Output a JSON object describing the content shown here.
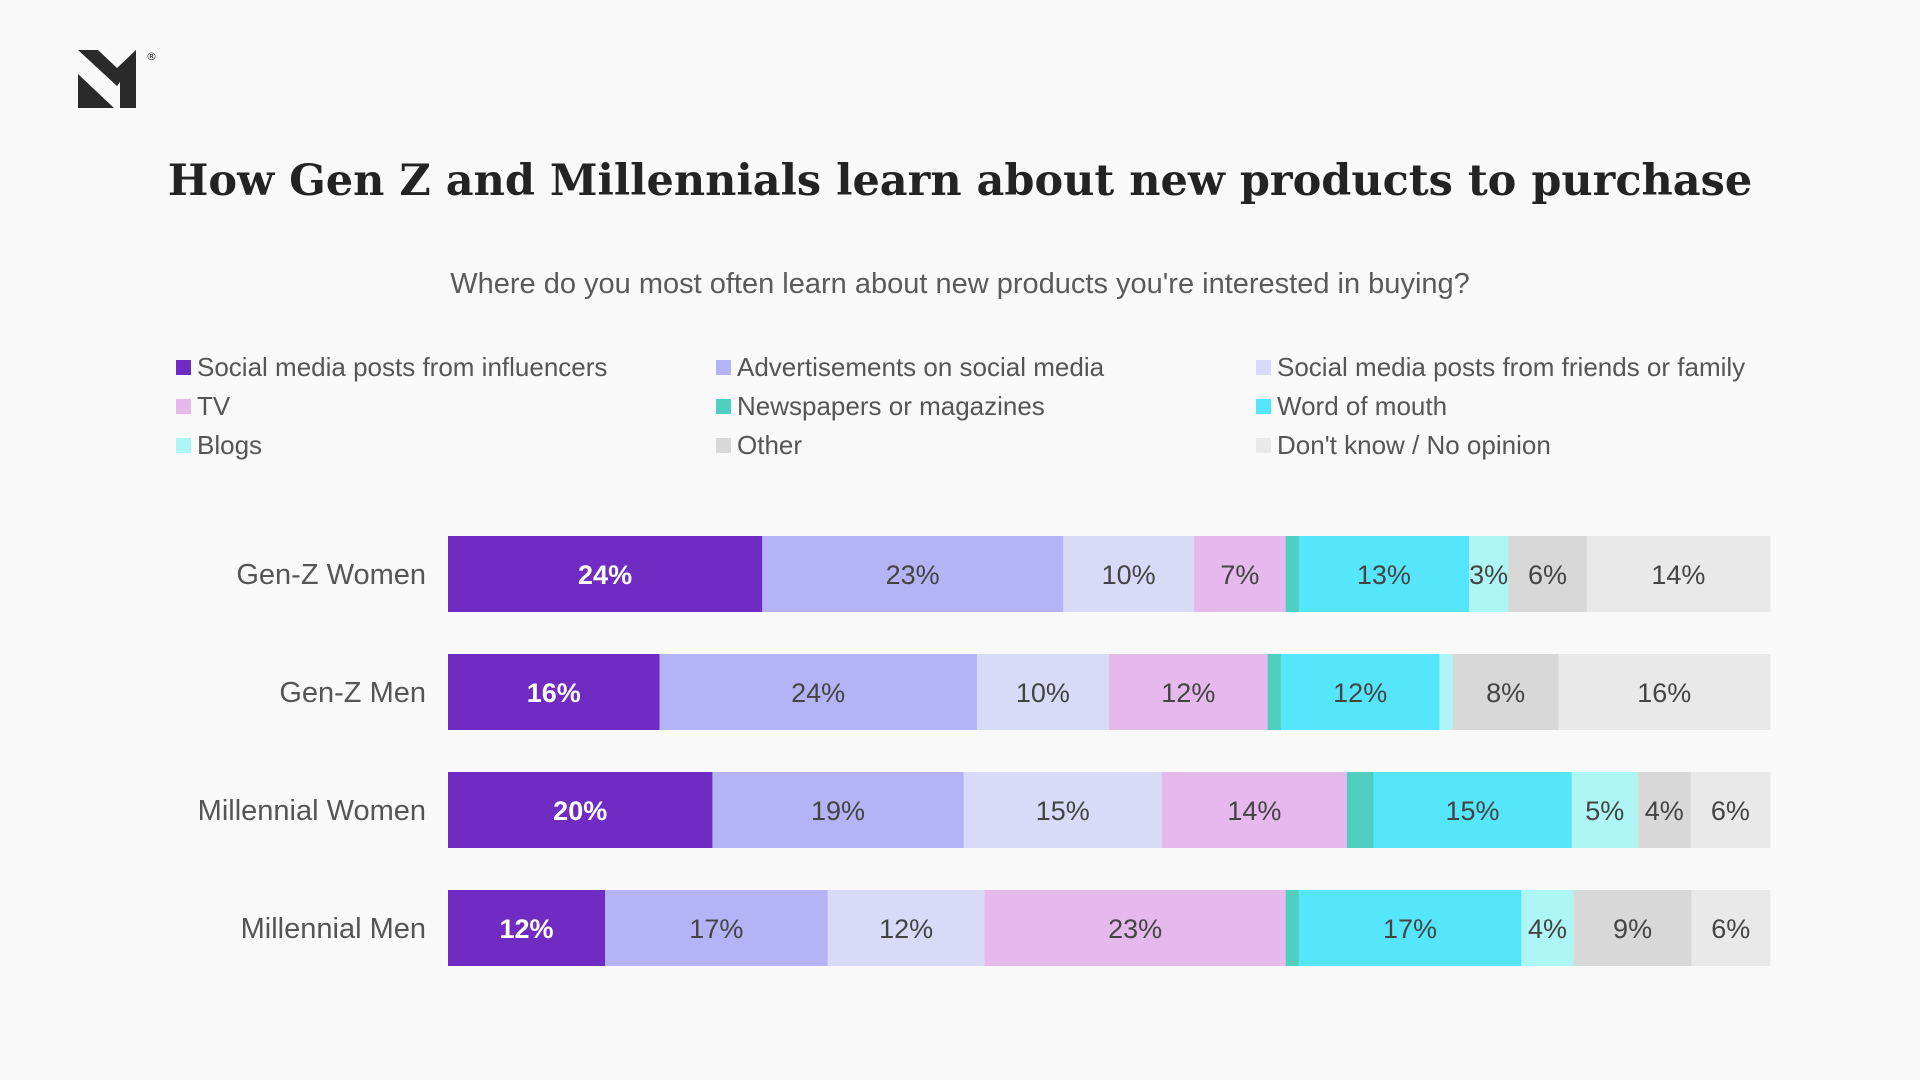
{
  "title": "How Gen Z and Millennials learn about new products to purchase",
  "subtitle": "Where do you most often learn about new products you're interested in buying?",
  "colors": {
    "background": "#f9f9f9",
    "influencers": "#702cc2",
    "ads_social": "#b3b3f5",
    "friends_family": "#d9daf8",
    "tv": "#e6b9ed",
    "newspapers": "#4fcfc0",
    "word_of_mouth": "#55e6fb",
    "blogs": "#aef6f5",
    "other": "#d8d8d8",
    "dont_know": "#e9e9e9"
  },
  "chart_data": {
    "type": "bar",
    "orientation": "horizontal",
    "stacked": true,
    "normalized": true,
    "title": "How Gen Z and Millennials learn about new products to purchase",
    "subtitle": "Where do you most often learn about new products you're interested in buying?",
    "categories": [
      "Gen-Z Women",
      "Gen-Z Men",
      "Millennial Women",
      "Millennial Men"
    ],
    "legend_position": "top",
    "grid": false,
    "series": [
      {
        "name": "Social media posts from influencers",
        "color_key": "influencers",
        "values": [
          24,
          16,
          20,
          12
        ],
        "labels": [
          "24%",
          "16%",
          "20%",
          "12%"
        ]
      },
      {
        "name": "Advertisements on social media",
        "color_key": "ads_social",
        "values": [
          23,
          24,
          19,
          17
        ],
        "labels": [
          "23%",
          "24%",
          "19%",
          "17%"
        ]
      },
      {
        "name": "Social media posts from friends or family",
        "color_key": "friends_family",
        "values": [
          10,
          10,
          15,
          12
        ],
        "labels": [
          "10%",
          "10%",
          "15%",
          "12%"
        ]
      },
      {
        "name": "TV",
        "color_key": "tv",
        "values": [
          7,
          12,
          14,
          23
        ],
        "labels": [
          "7%",
          "12%",
          "14%",
          "23%"
        ]
      },
      {
        "name": "Newspapers or magazines",
        "color_key": "newspapers",
        "values": [
          1,
          1,
          2,
          1
        ],
        "labels": [
          "",
          "",
          "",
          ""
        ]
      },
      {
        "name": "Word of mouth",
        "color_key": "word_of_mouth",
        "values": [
          13,
          12,
          15,
          17
        ],
        "labels": [
          "13%",
          "12%",
          "15%",
          "17%"
        ]
      },
      {
        "name": "Blogs",
        "color_key": "blogs",
        "values": [
          3,
          1,
          5,
          4
        ],
        "labels": [
          "3%",
          "",
          "5%",
          "4%"
        ]
      },
      {
        "name": "Other",
        "color_key": "other",
        "values": [
          6,
          8,
          4,
          9
        ],
        "labels": [
          "6%",
          "8%",
          "4%",
          "9%"
        ]
      },
      {
        "name": "Don't know / No opinion",
        "color_key": "dont_know",
        "values": [
          14,
          16,
          6,
          6
        ],
        "labels": [
          "14%",
          "16%",
          "6%",
          "6%"
        ]
      }
    ]
  }
}
